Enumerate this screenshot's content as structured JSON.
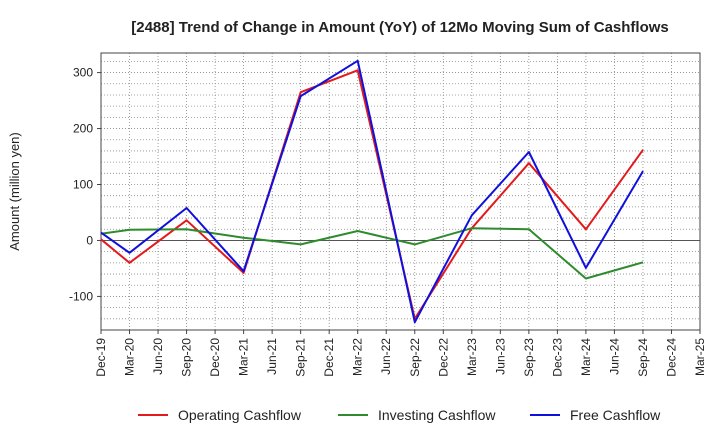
{
  "chart_data": {
    "type": "line",
    "title": "[2488]  Trend of Change in Amount (YoY) of 12Mo Moving Sum of Cashflows",
    "xlabel": "",
    "ylabel": "Amount (million yen)",
    "categories": [
      "Dec-19",
      "Mar-20",
      "Jun-20",
      "Sep-20",
      "Dec-20",
      "Mar-21",
      "Jun-21",
      "Sep-21",
      "Dec-21",
      "Mar-22",
      "Jun-22",
      "Sep-22",
      "Dec-22",
      "Mar-23",
      "Jun-23",
      "Sep-23",
      "Dec-23",
      "Mar-24",
      "Jun-24",
      "Sep-24",
      "Dec-24",
      "Mar-25"
    ],
    "ylim": [
      -160,
      335
    ],
    "yticks": [
      -100,
      0,
      100,
      200,
      300
    ],
    "ytick_labels": [
      "-100",
      "0",
      "100",
      "200",
      "300"
    ],
    "grid": true,
    "legend_position": "bottom",
    "series": [
      {
        "name": "Operating Cashflow",
        "color": "#e31a1c",
        "values": [
          2,
          -40,
          null,
          36,
          null,
          -58,
          null,
          265,
          null,
          304,
          null,
          -140,
          null,
          22,
          null,
          138,
          null,
          20,
          null,
          162,
          null,
          null
        ]
      },
      {
        "name": "Investing Cashflow",
        "color": "#2e8b2e",
        "values": [
          12,
          19,
          null,
          20,
          null,
          5,
          null,
          -7,
          null,
          17,
          null,
          -7,
          null,
          22,
          null,
          20,
          null,
          -68,
          null,
          -39,
          null,
          null
        ]
      },
      {
        "name": "Free Cashflow",
        "color": "#1010dd",
        "values": [
          14,
          -22,
          null,
          58,
          null,
          -55,
          null,
          258,
          null,
          321,
          null,
          -146,
          null,
          45,
          null,
          158,
          null,
          -49,
          null,
          124,
          null,
          null
        ]
      }
    ]
  }
}
